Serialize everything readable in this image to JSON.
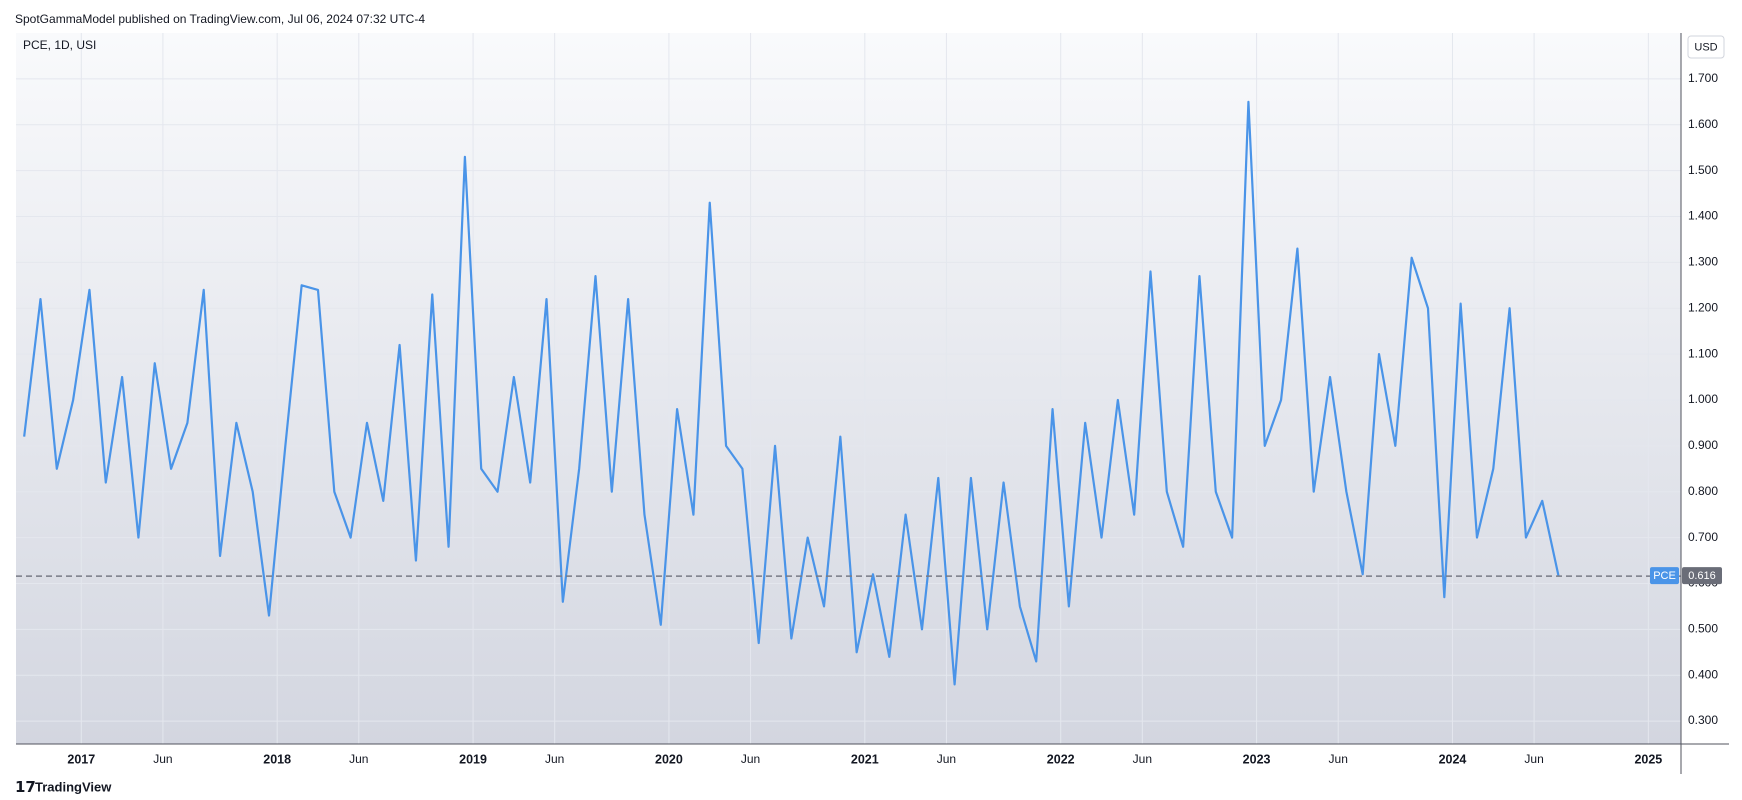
{
  "header": {
    "text": "SpotGammaModel published on TradingView.com, Jul 06, 2024 07:32 UTC-4"
  },
  "footer": {
    "brand": "TradingView"
  },
  "chart_data": {
    "type": "line",
    "legend_text": "PCE, 1D, USI",
    "currency": "USD",
    "x": [
      "2016-09",
      "2016-10",
      "2016-11",
      "2016-12",
      "2017-01",
      "2017-02",
      "2017-03",
      "2017-04",
      "2017-05",
      "2017-06",
      "2017-07",
      "2017-08",
      "2017-09",
      "2017-10",
      "2017-11",
      "2017-12",
      "2018-01",
      "2018-02",
      "2018-03",
      "2018-04",
      "2018-05",
      "2018-06",
      "2018-07",
      "2018-08",
      "2018-09",
      "2018-10",
      "2018-11",
      "2018-12",
      "2019-01",
      "2019-02",
      "2019-03",
      "2019-04",
      "2019-05",
      "2019-06",
      "2019-07",
      "2019-08",
      "2019-09",
      "2019-10",
      "2019-11",
      "2019-12",
      "2020-01",
      "2020-02",
      "2020-03",
      "2020-04",
      "2020-05",
      "2020-06",
      "2020-07",
      "2020-08",
      "2020-09",
      "2020-10",
      "2020-11",
      "2020-12",
      "2021-01",
      "2021-02",
      "2021-03",
      "2021-04",
      "2021-05",
      "2021-06",
      "2021-07",
      "2021-08",
      "2021-09",
      "2021-10",
      "2021-11",
      "2021-12",
      "2022-01",
      "2022-02",
      "2022-03",
      "2022-04",
      "2022-05",
      "2022-06",
      "2022-07",
      "2022-08",
      "2022-09",
      "2022-10",
      "2022-11",
      "2022-12",
      "2023-01",
      "2023-02",
      "2023-03",
      "2023-04",
      "2023-05",
      "2023-06",
      "2023-07",
      "2023-08",
      "2023-09",
      "2023-10",
      "2023-11",
      "2023-12",
      "2024-01",
      "2024-02",
      "2024-03",
      "2024-04",
      "2024-05",
      "2024-06",
      "2024-07"
    ],
    "series": [
      {
        "name": "PCE",
        "color": "#4a94e8",
        "values": [
          0.92,
          1.22,
          0.85,
          1.0,
          1.24,
          0.82,
          1.05,
          0.7,
          1.08,
          0.85,
          0.95,
          1.24,
          0.66,
          0.95,
          0.8,
          0.53,
          0.9,
          1.25,
          1.24,
          0.8,
          0.7,
          0.95,
          0.78,
          1.12,
          0.65,
          1.23,
          0.68,
          1.53,
          0.85,
          0.8,
          1.05,
          0.82,
          1.22,
          0.56,
          0.85,
          1.27,
          0.8,
          1.22,
          0.75,
          0.51,
          0.98,
          0.75,
          1.43,
          0.9,
          0.85,
          0.47,
          0.9,
          0.48,
          0.7,
          0.55,
          0.92,
          0.45,
          0.62,
          0.44,
          0.75,
          0.5,
          0.83,
          0.38,
          0.83,
          0.5,
          0.82,
          0.55,
          0.43,
          0.98,
          0.55,
          0.95,
          0.7,
          1.0,
          0.75,
          1.28,
          0.8,
          0.68,
          1.27,
          0.8,
          0.7,
          1.65,
          0.9,
          1.0,
          1.33,
          0.8,
          1.05,
          0.8,
          0.62,
          1.1,
          0.9,
          1.31,
          1.2,
          0.57,
          1.21,
          0.7,
          0.85,
          1.2,
          0.7,
          0.78,
          0.616
        ]
      }
    ],
    "xlim": [
      "2016-09",
      "2025-03"
    ],
    "xticks": [
      {
        "value": "2017-01",
        "label": "2017"
      },
      {
        "value": "2017-06",
        "label": "Jun"
      },
      {
        "value": "2018-01",
        "label": "2018"
      },
      {
        "value": "2018-06",
        "label": "Jun"
      },
      {
        "value": "2019-01",
        "label": "2019"
      },
      {
        "value": "2019-06",
        "label": "Jun"
      },
      {
        "value": "2020-01",
        "label": "2020"
      },
      {
        "value": "2020-06",
        "label": "Jun"
      },
      {
        "value": "2021-01",
        "label": "2021"
      },
      {
        "value": "2021-06",
        "label": "Jun"
      },
      {
        "value": "2022-01",
        "label": "2022"
      },
      {
        "value": "2022-06",
        "label": "Jun"
      },
      {
        "value": "2023-01",
        "label": "2023"
      },
      {
        "value": "2023-06",
        "label": "Jun"
      },
      {
        "value": "2024-01",
        "label": "2024"
      },
      {
        "value": "2024-06",
        "label": "Jun"
      },
      {
        "value": "2025-01",
        "label": "2025"
      }
    ],
    "ylim": [
      0.25,
      1.8
    ],
    "yticks": [
      {
        "value": 0.3,
        "label": "0.300"
      },
      {
        "value": 0.4,
        "label": "0.400"
      },
      {
        "value": 0.5,
        "label": "0.500"
      },
      {
        "value": 0.6,
        "label": "0.600"
      },
      {
        "value": 0.7,
        "label": "0.700"
      },
      {
        "value": 0.8,
        "label": "0.800"
      },
      {
        "value": 0.9,
        "label": "0.900"
      },
      {
        "value": 1.0,
        "label": "1.000"
      },
      {
        "value": 1.1,
        "label": "1.100"
      },
      {
        "value": 1.2,
        "label": "1.200"
      },
      {
        "value": 1.3,
        "label": "1.300"
      },
      {
        "value": 1.4,
        "label": "1.400"
      },
      {
        "value": 1.5,
        "label": "1.500"
      },
      {
        "value": 1.6,
        "label": "1.600"
      },
      {
        "value": 1.7,
        "label": "1.700"
      }
    ],
    "grid": true
  }
}
